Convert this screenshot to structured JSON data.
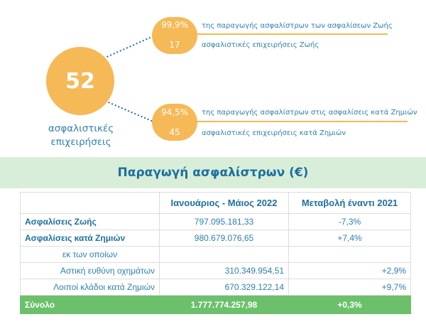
{
  "summary": {
    "total_value": "52",
    "total_label": "ασφαλιστικές επιχειρήσεις"
  },
  "life": {
    "share_value": "99,9%",
    "share_text": "της παραγωγής ασφαλίστρων των ασφαλίσεων Ζωής",
    "count_value": "17",
    "count_text": "ασφαλιστικές επιχειρήσεις Ζωής"
  },
  "nonlife": {
    "share_value": "94,5%",
    "share_text": "της παραγωγής ασφαλίστρων στις ασφαλίσεις κατά Ζημιών",
    "count_value": "45",
    "count_text": "ασφαλιστικές επιχειρήσεις κατά Ζημιών"
  },
  "banner_title": "Παραγωγή ασφαλίστρων (€)",
  "table": {
    "header": {
      "label": "",
      "period": "Ιανουάριος - Μάιος 2022",
      "change": "Μεταβολή έναντι 2021"
    },
    "rows": [
      {
        "label": "Ασφαλίσεις Ζωής",
        "value": "797.095.181,33",
        "change": "-7,3%"
      },
      {
        "label": "Ασφαλίσεις κατά Ζημιών",
        "value": "980.679.076,65",
        "change": "+7,4%"
      },
      {
        "label": "εκ των οποίων",
        "value": "",
        "change": ""
      },
      {
        "label": "Αστική ευθύνη οχημάτων",
        "value": "310.349.954,51",
        "change": "+2,9%"
      },
      {
        "label": "Λοιποί κλάδοι κατά Ζημιών",
        "value": "670.329.122,14",
        "change": "+9,7%"
      }
    ],
    "total": {
      "label": "Σύνολο",
      "value": "1.777.774.257,98",
      "change": "+0,3%"
    }
  },
  "colors": {
    "accent_orange": "#f6b957",
    "text_blue": "#2e7fb0",
    "banner_green": "#d8eed8",
    "total_green": "#6cc06c"
  }
}
